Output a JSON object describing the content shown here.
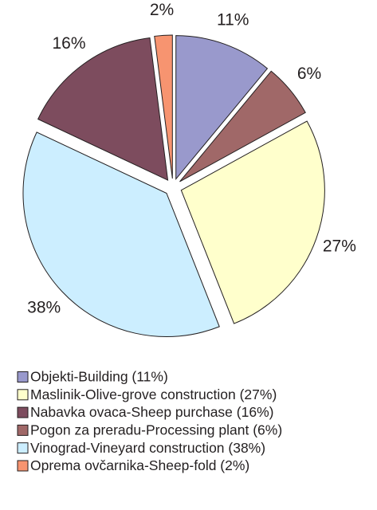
{
  "chart_data": {
    "type": "pie",
    "values": [
      11,
      6,
      27,
      38,
      16,
      2
    ],
    "value_labels": [
      "11%",
      "6%",
      "27%",
      "38%",
      "16%",
      "2%"
    ],
    "colors": [
      "#9999cc",
      "#a06868",
      "#ffffcc",
      "#cceeff",
      "#7d4c5e",
      "#f79470"
    ],
    "legend": [
      {
        "label": "Objekti-Building (11%)",
        "color": "#9999cc"
      },
      {
        "label": "Maslinik-Olive-grove construction (27%)",
        "color": "#ffffcc"
      },
      {
        "label": "Nabavka ovaca-Sheep purchase (16%)",
        "color": "#7d4c5e"
      },
      {
        "label": "Pogon za preradu-Processing plant (6%)",
        "color": "#a06868"
      },
      {
        "label": "Vinograd-Vineyard construction (38%)",
        "color": "#cceeff"
      },
      {
        "label": "Oprema ovčarnika-Sheep-fold (2%)",
        "color": "#f79470"
      }
    ]
  }
}
